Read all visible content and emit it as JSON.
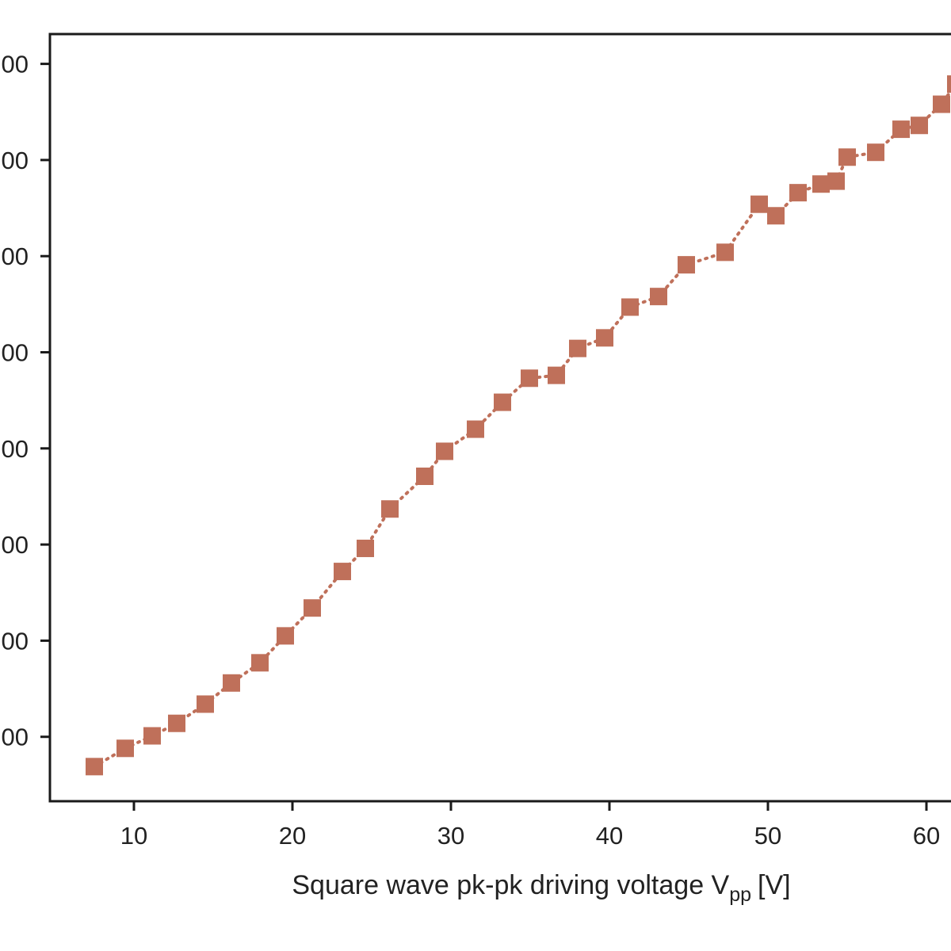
{
  "chart_data": {
    "type": "scatter",
    "title": "",
    "xlabel": "Square wave pk-pk driving voltage V",
    "xlabel_subscript": "pp",
    "xlabel_unit": "[V]",
    "ylabel": "",
    "xlim": [
      4.7,
      61.55
    ],
    "ylim": [
      -0.67,
      7.31
    ],
    "x_ticks": [
      10,
      20,
      30,
      40,
      50,
      60
    ],
    "x_tick_labels": [
      "10",
      "20",
      "30",
      "40",
      "50",
      "60"
    ],
    "y_ticks": [
      0,
      1,
      2,
      3,
      4,
      5,
      6,
      7
    ],
    "y_tick_labels": [
      "00",
      "00",
      "00",
      "00",
      "00",
      "00",
      "00",
      "00"
    ],
    "grid": false,
    "marker": "square",
    "line_style": "dotted",
    "color": "#bf705a",
    "series": [
      {
        "x": [
          7.5,
          9.45,
          11.15,
          12.7,
          14.5,
          16.15,
          17.95,
          19.55,
          21.25,
          23.15,
          24.6,
          26.15,
          28.35,
          29.6,
          31.55,
          33.25,
          34.95,
          36.65,
          38.0,
          39.7,
          41.3,
          43.1,
          44.85,
          47.3,
          49.45,
          50.5,
          51.9,
          53.35,
          54.3,
          55.0,
          56.8,
          58.4,
          59.55,
          60.95,
          61.85
        ],
        "y": [
          -0.31,
          -0.12,
          0.01,
          0.14,
          0.34,
          0.56,
          0.77,
          1.05,
          1.34,
          1.72,
          1.96,
          2.37,
          2.71,
          2.97,
          3.2,
          3.48,
          3.73,
          3.76,
          4.04,
          4.15,
          4.47,
          4.58,
          4.91,
          5.04,
          5.54,
          5.42,
          5.66,
          5.75,
          5.78,
          6.03,
          6.08,
          6.32,
          6.36,
          6.58,
          6.79
        ]
      }
    ]
  }
}
